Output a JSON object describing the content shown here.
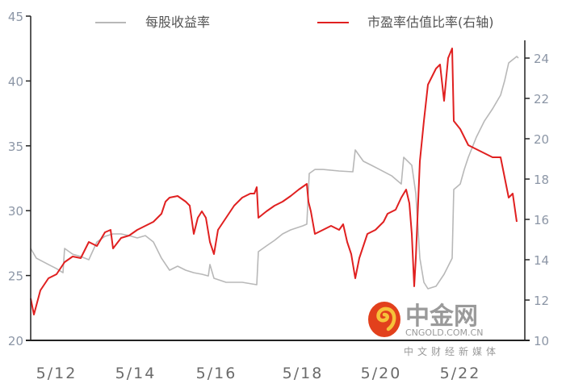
{
  "chart_data": {
    "type": "line",
    "title": "",
    "legend_position": "top",
    "grid": false,
    "x_tick_labels": [
      "5/12",
      "5/14",
      "5/16",
      "5/18",
      "5/20",
      "5/22"
    ],
    "x_tick_values": [
      2012.33,
      2014.29,
      2016.29,
      2018.43,
      2020.37,
      2022.33
    ],
    "xlim": [
      2011.69,
      2023.93
    ],
    "y_left": {
      "ticks": [
        "45",
        "40",
        "35",
        "30",
        "25",
        "20"
      ],
      "lim": [
        20,
        45
      ]
    },
    "y_right": {
      "ticks": [
        "24",
        "22",
        "20",
        "18",
        "16",
        "14",
        "12",
        "10"
      ],
      "lim": [
        10,
        25
      ]
    },
    "series": [
      {
        "name": "每股收益率",
        "axis": "left",
        "color": "#b8b8b8",
        "x": [
          2011.69,
          2011.83,
          2012.13,
          2012.33,
          2012.49,
          2012.53,
          2012.73,
          2012.93,
          2013.13,
          2013.33,
          2013.53,
          2013.73,
          2013.93,
          2014.13,
          2014.33,
          2014.53,
          2014.73,
          2014.93,
          2015.13,
          2015.33,
          2015.53,
          2015.73,
          2015.93,
          2016.09,
          2016.13,
          2016.23,
          2016.53,
          2016.93,
          2017.29,
          2017.33,
          2017.53,
          2017.73,
          2017.93,
          2018.13,
          2018.43,
          2018.53,
          2018.59,
          2018.73,
          2018.93,
          2019.33,
          2019.67,
          2019.73,
          2019.93,
          2020.13,
          2020.33,
          2020.63,
          2020.87,
          2020.93,
          2021.13,
          2021.23,
          2021.33,
          2021.43,
          2021.53,
          2021.73,
          2021.93,
          2022.13,
          2022.17,
          2022.33,
          2022.43,
          2022.53,
          2022.73,
          2022.93,
          2023.13,
          2023.33,
          2023.43,
          2023.53,
          2023.73,
          2023.77
        ],
        "y": [
          27.09,
          26.34,
          25.85,
          25.53,
          25.22,
          27.09,
          26.65,
          26.47,
          26.22,
          27.59,
          28.02,
          28.21,
          28.21,
          28.08,
          27.9,
          28.08,
          27.59,
          26.34,
          25.41,
          25.72,
          25.41,
          25.22,
          25.1,
          24.97,
          25.85,
          24.79,
          24.48,
          24.48,
          24.29,
          26.84,
          27.28,
          27.71,
          28.21,
          28.52,
          28.83,
          28.96,
          32.87,
          33.18,
          33.18,
          33.06,
          33.0,
          34.68,
          33.81,
          33.5,
          33.18,
          32.69,
          32.06,
          34.12,
          33.5,
          31.32,
          26.34,
          24.48,
          23.98,
          24.17,
          25.1,
          26.34,
          31.63,
          32.06,
          33.18,
          34.12,
          35.67,
          36.92,
          37.85,
          38.91,
          40.02,
          41.39,
          41.89,
          41.77
        ]
      },
      {
        "name": "市盈率估值比率(右轴)",
        "axis": "right",
        "color": "#e02020",
        "x": [
          2011.69,
          2011.77,
          2011.93,
          2012.13,
          2012.33,
          2012.53,
          2012.73,
          2012.93,
          2013.13,
          2013.33,
          2013.53,
          2013.67,
          2013.73,
          2013.93,
          2014.13,
          2014.33,
          2014.53,
          2014.73,
          2014.93,
          2015.03,
          2015.13,
          2015.33,
          2015.53,
          2015.63,
          2015.73,
          2015.83,
          2015.93,
          2016.03,
          2016.13,
          2016.23,
          2016.33,
          2016.53,
          2016.73,
          2016.93,
          2017.13,
          2017.23,
          2017.29,
          2017.33,
          2017.53,
          2017.73,
          2017.93,
          2018.13,
          2018.33,
          2018.53,
          2018.57,
          2018.63,
          2018.73,
          2018.93,
          2019.13,
          2019.33,
          2019.43,
          2019.53,
          2019.63,
          2019.73,
          2019.83,
          2020.03,
          2020.23,
          2020.43,
          2020.53,
          2020.73,
          2020.87,
          2020.93,
          2020.99,
          2021.07,
          2021.13,
          2021.19,
          2021.23,
          2021.33,
          2021.43,
          2021.53,
          2021.73,
          2021.83,
          2021.93,
          2022.03,
          2022.13,
          2022.17,
          2022.33,
          2022.53,
          2022.73,
          2022.93,
          2023.13,
          2023.33,
          2023.43,
          2023.53,
          2023.63,
          2023.73
        ],
        "y": [
          12.08,
          11.28,
          12.48,
          13.08,
          13.28,
          13.88,
          14.16,
          14.08,
          14.88,
          14.68,
          15.36,
          15.48,
          14.56,
          15.08,
          15.2,
          15.48,
          15.68,
          15.88,
          16.28,
          16.88,
          17.08,
          17.16,
          16.88,
          16.68,
          15.28,
          16.08,
          16.4,
          16.08,
          14.88,
          14.28,
          15.48,
          16.08,
          16.68,
          17.08,
          17.28,
          17.28,
          17.6,
          16.08,
          16.4,
          16.68,
          16.88,
          17.16,
          17.48,
          17.76,
          16.88,
          16.4,
          15.28,
          15.48,
          15.68,
          15.48,
          15.76,
          14.88,
          14.28,
          13.08,
          14.08,
          15.28,
          15.48,
          15.88,
          16.28,
          16.48,
          17.08,
          17.28,
          17.48,
          16.8,
          15.28,
          12.68,
          14.08,
          18.88,
          20.88,
          22.68,
          23.48,
          23.68,
          21.88,
          24.0,
          24.48,
          20.88,
          20.48,
          19.68,
          19.48,
          19.28,
          19.08,
          19.08,
          18.08,
          17.08,
          17.28,
          15.88
        ]
      }
    ]
  },
  "watermark": {
    "brand": "中金网",
    "domain": "CNGOLD.COM.CN",
    "slogan": "中文财经新媒体",
    "logo_color": "#e2401c"
  }
}
